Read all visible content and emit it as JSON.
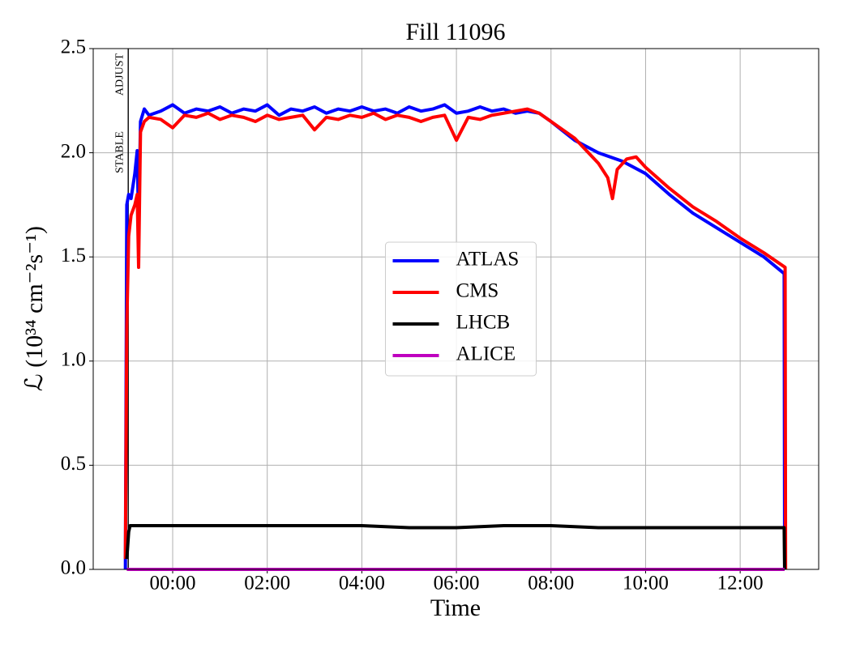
{
  "chart_data": {
    "type": "line",
    "title": "Fill 11096",
    "xlabel": "Time",
    "ylabel": "ℒ (10³⁴ cm⁻²s⁻¹)",
    "xlim": [
      -1.68,
      13.66
    ],
    "ylim": [
      0,
      2.5
    ],
    "xticks": [
      {
        "value": 0,
        "label": "00:00"
      },
      {
        "value": 2,
        "label": "02:00"
      },
      {
        "value": 4,
        "label": "04:00"
      },
      {
        "value": 6,
        "label": "06:00"
      },
      {
        "value": 8,
        "label": "08:00"
      },
      {
        "value": 10,
        "label": "10:00"
      },
      {
        "value": 12,
        "label": "12:00"
      }
    ],
    "yticks": [
      {
        "value": 0,
        "label": "0.0"
      },
      0.5,
      {
        "value": 1,
        "label": "1.0"
      },
      1.5,
      {
        "value": 2,
        "label": "2.0"
      },
      2.5
    ],
    "grid": true,
    "legend": "center",
    "annotations": [
      {
        "label": "ADJUST",
        "x": -0.94
      },
      {
        "label": "STABLE",
        "x": -0.94
      }
    ],
    "series": [
      {
        "name": "ATLAS",
        "color": "#0000ff",
        "x": [
          -1.0,
          -0.97,
          -0.93,
          -0.88,
          -0.8,
          -0.75,
          -0.72,
          -0.68,
          -0.6,
          -0.5,
          -0.25,
          0,
          0.25,
          0.5,
          0.75,
          1,
          1.25,
          1.5,
          1.75,
          2,
          2.25,
          2.5,
          2.75,
          3,
          3.25,
          3.5,
          3.75,
          4,
          4.25,
          4.5,
          4.75,
          5,
          5.25,
          5.5,
          5.75,
          6,
          6.25,
          6.5,
          6.75,
          7,
          7.25,
          7.5,
          7.75,
          8,
          8.5,
          9,
          9.5,
          10,
          10.5,
          11,
          11.5,
          12,
          12.5,
          12.93,
          12.94
        ],
        "values": [
          0.0,
          1.75,
          1.8,
          1.78,
          1.9,
          2.01,
          1.65,
          2.15,
          2.21,
          2.18,
          2.2,
          2.23,
          2.19,
          2.21,
          2.2,
          2.22,
          2.19,
          2.21,
          2.2,
          2.23,
          2.18,
          2.21,
          2.2,
          2.22,
          2.19,
          2.21,
          2.2,
          2.22,
          2.2,
          2.21,
          2.19,
          2.22,
          2.2,
          2.21,
          2.23,
          2.19,
          2.2,
          2.22,
          2.2,
          2.21,
          2.19,
          2.2,
          2.19,
          2.15,
          2.06,
          2.0,
          1.96,
          1.9,
          1.8,
          1.71,
          1.64,
          1.57,
          1.5,
          1.42,
          0.0
        ]
      },
      {
        "name": "CMS",
        "color": "#ff0000",
        "x": [
          -1.0,
          -0.97,
          -0.93,
          -0.88,
          -0.8,
          -0.75,
          -0.72,
          -0.68,
          -0.6,
          -0.5,
          -0.25,
          0,
          0.25,
          0.5,
          0.75,
          1,
          1.25,
          1.5,
          1.75,
          2,
          2.25,
          2.5,
          2.75,
          3,
          3.25,
          3.5,
          3.75,
          4,
          4.25,
          4.5,
          4.75,
          5,
          5.25,
          5.5,
          5.75,
          6,
          6.25,
          6.5,
          6.75,
          7,
          7.25,
          7.5,
          7.75,
          8,
          8.5,
          9,
          9.2,
          9.3,
          9.4,
          9.6,
          9.8,
          10,
          10.5,
          11,
          11.5,
          12,
          12.5,
          12.95,
          12.96
        ],
        "values": [
          0.05,
          1.17,
          1.6,
          1.7,
          1.75,
          1.8,
          1.45,
          2.1,
          2.15,
          2.17,
          2.16,
          2.12,
          2.18,
          2.17,
          2.19,
          2.16,
          2.18,
          2.17,
          2.15,
          2.18,
          2.16,
          2.17,
          2.18,
          2.11,
          2.17,
          2.16,
          2.18,
          2.17,
          2.19,
          2.16,
          2.18,
          2.17,
          2.15,
          2.17,
          2.18,
          2.06,
          2.17,
          2.16,
          2.18,
          2.19,
          2.2,
          2.21,
          2.19,
          2.15,
          2.07,
          1.95,
          1.88,
          1.78,
          1.92,
          1.97,
          1.98,
          1.93,
          1.83,
          1.74,
          1.67,
          1.59,
          1.52,
          1.45,
          0.0
        ]
      },
      {
        "name": "LHCB",
        "color": "#000000",
        "x": [
          -0.97,
          -0.93,
          -0.9,
          0,
          1,
          2,
          3,
          4,
          5,
          6,
          7,
          8,
          9,
          10,
          11,
          12,
          12.93,
          12.94
        ],
        "values": [
          0.05,
          0.18,
          0.21,
          0.21,
          0.21,
          0.21,
          0.21,
          0.21,
          0.2,
          0.2,
          0.21,
          0.21,
          0.2,
          0.2,
          0.2,
          0.2,
          0.2,
          0.0
        ]
      },
      {
        "name": "ALICE",
        "color": "#bf00bf",
        "x": [
          -0.97,
          12.94
        ],
        "values": [
          0,
          0
        ]
      }
    ]
  }
}
